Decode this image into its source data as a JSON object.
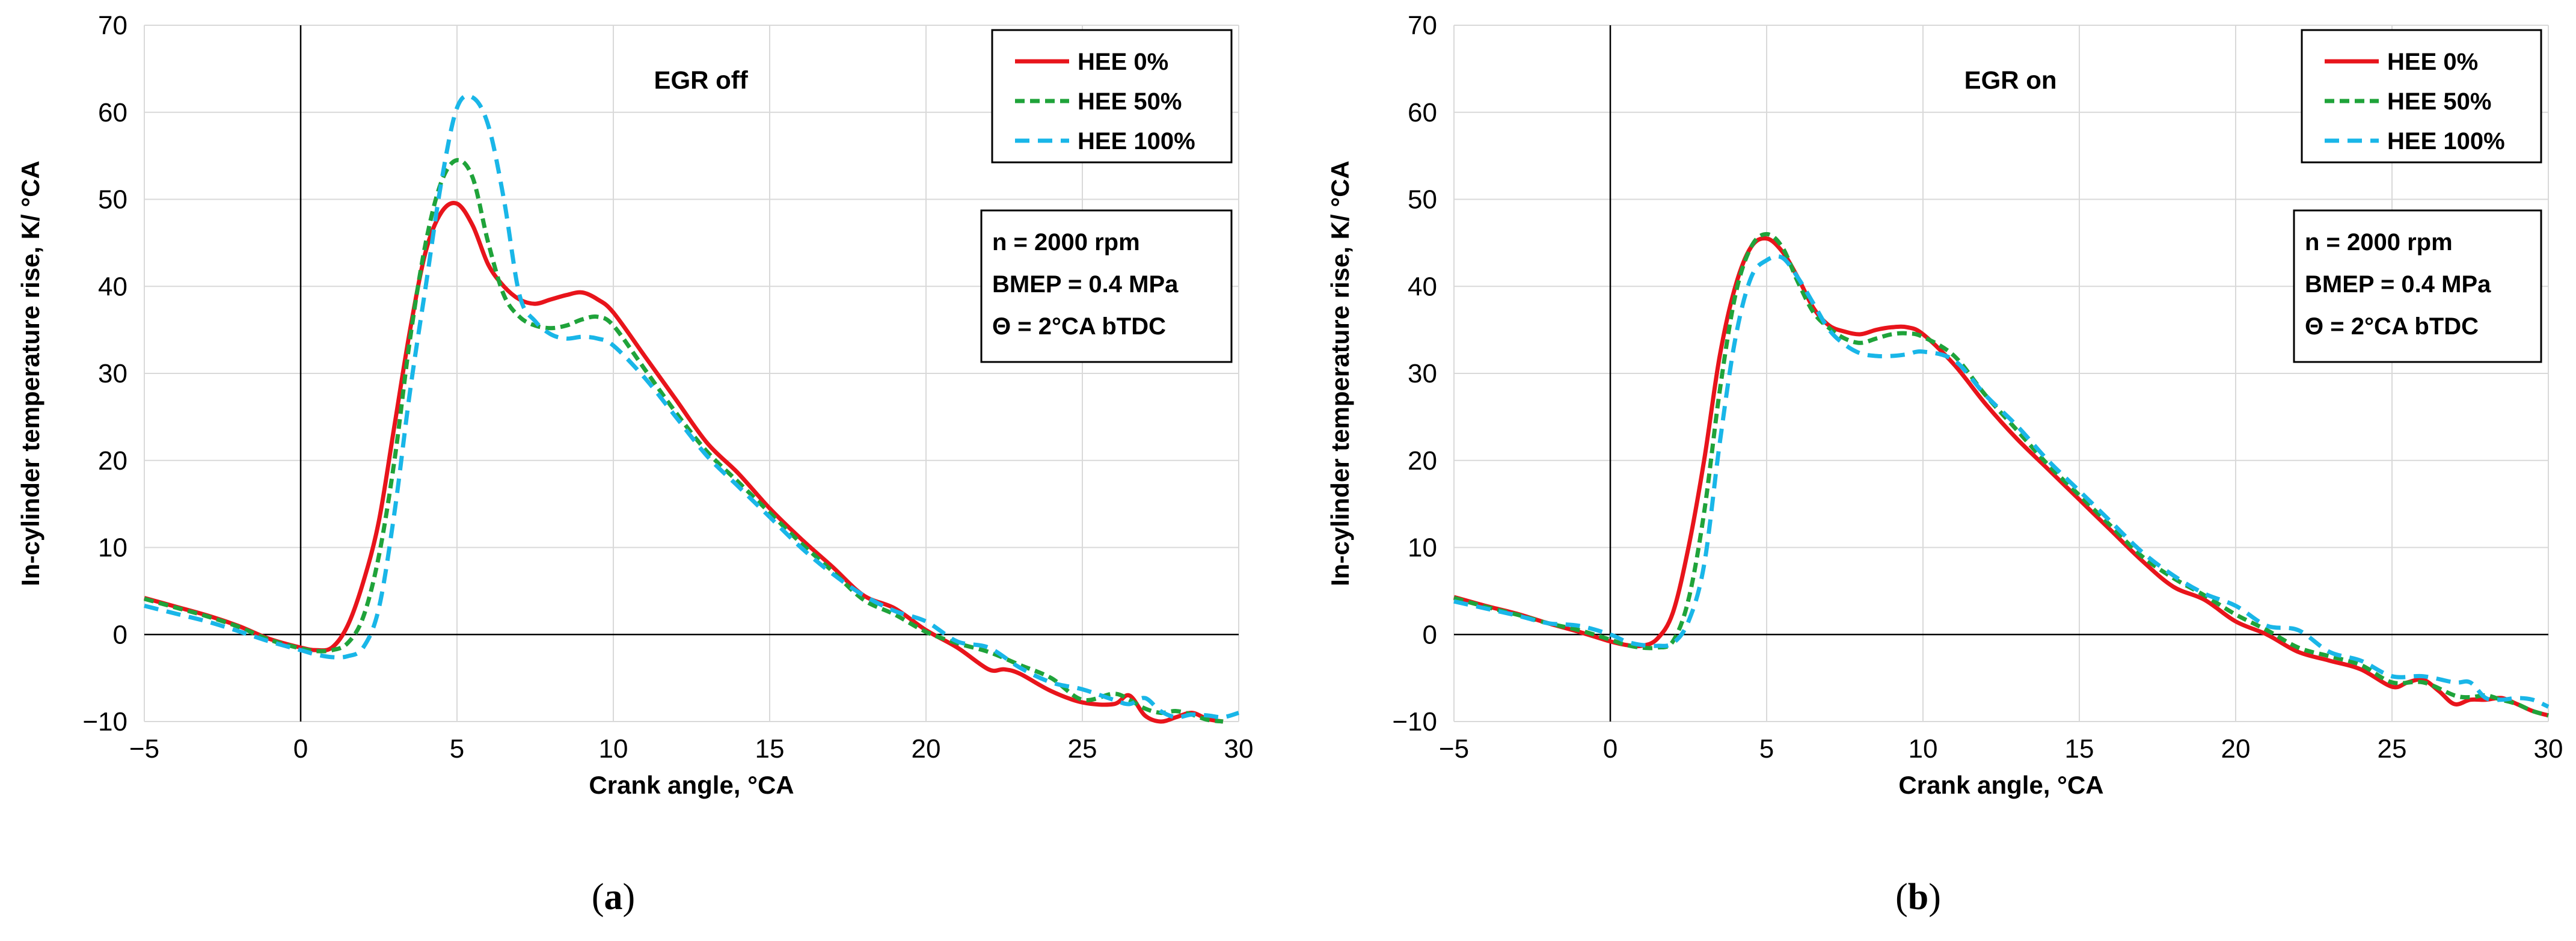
{
  "figure": {
    "panel_a_label": "a",
    "panel_b_label": "b"
  },
  "colors": {
    "hee0": "#E8141B",
    "hee50": "#1FA33A",
    "hee100": "#19B6E8",
    "axis": "#000000",
    "grid": "#D9D9D9"
  },
  "chart_data": [
    {
      "type": "line",
      "panel": "a",
      "title": "EGR off",
      "xlabel": "Crank angle, °CA",
      "ylabel": "In-cylinder temperature rise, K/ °CA",
      "xlim": [
        -5,
        30
      ],
      "ylim": [
        -10,
        70
      ],
      "xticks": [
        "−5",
        "0",
        "5",
        "10",
        "15",
        "20",
        "25",
        "30"
      ],
      "yticks": [
        "−10",
        "0",
        "10",
        "20",
        "30",
        "40",
        "50",
        "60",
        "70"
      ],
      "grid": true,
      "legend": [
        "HEE 0%",
        "HEE 50%",
        "HEE 100%"
      ],
      "legend_position": "top-right",
      "conditions": [
        "n = 2000 rpm",
        "BMEP = 0.4 MPa",
        "Θ = 2°CA bTDC"
      ],
      "series": [
        {
          "name": "HEE 0%",
          "style": "solid",
          "x": [
            -5,
            -4,
            -3,
            -2,
            -1,
            0,
            0.5,
            1,
            1.5,
            2,
            2.5,
            3,
            3.5,
            4,
            4.5,
            5,
            5.5,
            6,
            6.5,
            7,
            7.5,
            8,
            8.5,
            9,
            9.5,
            10,
            11,
            12,
            13,
            14,
            15,
            16,
            17,
            18,
            19,
            20,
            21,
            22,
            22.5,
            23,
            24,
            25,
            26,
            26.5,
            27,
            27.5,
            28,
            28.5,
            29,
            29.5
          ],
          "y": [
            4.2,
            3.2,
            2.2,
            1,
            -0.5,
            -1.5,
            -1.8,
            -1.5,
            1,
            6,
            13,
            24,
            35,
            44,
            48.5,
            49.5,
            47,
            42.5,
            40,
            38.5,
            38,
            38.5,
            39,
            39.3,
            38.5,
            37,
            32,
            27,
            22,
            18.5,
            14.5,
            11,
            7.8,
            4.5,
            3,
            0.5,
            -1.5,
            -4,
            -4,
            -4.5,
            -6.5,
            -7.8,
            -8,
            -7,
            -9.3,
            -10,
            -9.5,
            -9,
            -9.7,
            -10
          ]
        },
        {
          "name": "HEE 50%",
          "style": "dashed",
          "x": [
            -5,
            -4,
            -3,
            -2,
            -1,
            0,
            0.5,
            1,
            1.5,
            2,
            2.5,
            3,
            3.5,
            4,
            4.5,
            5,
            5.5,
            6,
            6.5,
            7,
            7.5,
            8,
            8.5,
            9,
            9.5,
            10,
            11,
            12,
            13,
            14,
            15,
            16,
            17,
            18,
            19,
            20,
            21,
            22,
            23,
            24,
            25,
            26,
            26.5,
            27,
            27.5,
            28,
            28.5,
            29,
            29.5
          ],
          "y": [
            4.1,
            3.1,
            2.1,
            0.9,
            -0.6,
            -1.6,
            -1.9,
            -1.8,
            -1,
            2,
            9,
            20,
            34,
            45,
            52,
            54.5,
            52.5,
            45,
            39,
            36.5,
            35.5,
            35.2,
            35.5,
            36.2,
            36.5,
            35.5,
            30.5,
            25.5,
            21,
            17.5,
            14,
            10.5,
            7.3,
            4,
            2.3,
            0.3,
            -1,
            -2,
            -3.5,
            -5,
            -7.5,
            -6.8,
            -7.5,
            -8.5,
            -9,
            -8.8,
            -9.2,
            -9.8,
            -10
          ]
        },
        {
          "name": "HEE 100%",
          "style": "dashed",
          "x": [
            -5,
            -4,
            -3,
            -2,
            -1,
            0,
            0.5,
            1,
            1.5,
            2,
            2.5,
            3,
            3.5,
            4,
            4.5,
            5,
            5.5,
            6,
            6.5,
            7,
            7.5,
            8,
            8.5,
            9,
            9.5,
            10,
            11,
            12,
            13,
            14,
            15,
            16,
            17,
            18,
            19,
            20,
            21,
            22,
            23,
            24,
            25,
            26,
            26.5,
            27,
            27.5,
            28,
            28.5,
            29,
            29.5,
            30
          ],
          "y": [
            3.3,
            2.4,
            1.5,
            0.4,
            -0.8,
            -1.8,
            -2.3,
            -2.6,
            -2.5,
            -1.5,
            3,
            14,
            28,
            40,
            52,
            60.5,
            61.7,
            58.5,
            50,
            39,
            36,
            34.5,
            34,
            34.2,
            34,
            33.2,
            29.5,
            25,
            20.5,
            17,
            13.5,
            10,
            7,
            4.5,
            2.7,
            1.5,
            -0.8,
            -1.5,
            -3.8,
            -5.5,
            -6.3,
            -7.5,
            -8,
            -7.3,
            -8.8,
            -9.5,
            -9.2,
            -9.3,
            -9.5,
            -9
          ]
        }
      ]
    },
    {
      "type": "line",
      "panel": "b",
      "title": "EGR on",
      "xlabel": "Crank angle, °CA",
      "ylabel": "In-cylinder temperature rise, K/ °CA",
      "xlim": [
        -5,
        30
      ],
      "ylim": [
        -10,
        70
      ],
      "xticks": [
        "−5",
        "0",
        "5",
        "10",
        "15",
        "20",
        "25",
        "30"
      ],
      "yticks": [
        "−10",
        "0",
        "10",
        "20",
        "30",
        "40",
        "50",
        "60",
        "70"
      ],
      "grid": true,
      "legend": [
        "HEE 0%",
        "HEE 50%",
        "HEE 100%"
      ],
      "legend_position": "top-right",
      "conditions": [
        "n = 2000 rpm",
        "BMEP = 0.4 MPa",
        "Θ = 2°CA bTDC"
      ],
      "series": [
        {
          "name": "HEE 0%",
          "style": "solid",
          "x": [
            -5,
            -4,
            -3,
            -2,
            -1,
            0,
            0.5,
            1,
            1.5,
            2,
            2.5,
            3,
            3.5,
            4,
            4.5,
            5,
            5.5,
            6,
            6.5,
            7,
            7.5,
            8,
            8.5,
            9,
            9.5,
            10,
            11,
            12,
            13,
            14,
            15,
            16,
            17,
            18,
            19,
            20,
            21,
            22,
            23,
            24,
            25,
            25.5,
            26,
            26.5,
            27,
            27.5,
            28,
            28.5,
            29,
            29.5,
            30
          ],
          "y": [
            4.3,
            3.3,
            2.4,
            1.3,
            0.3,
            -0.8,
            -1.2,
            -1.3,
            -0.5,
            2.5,
            10,
            20,
            32,
            40,
            44.5,
            45.5,
            44,
            41,
            37.5,
            35.5,
            34.8,
            34.5,
            35,
            35.3,
            35.3,
            34.5,
            31,
            26.5,
            22.5,
            19,
            15.5,
            12,
            8.5,
            5.5,
            4,
            1.5,
            0,
            -2,
            -3,
            -4,
            -6,
            -5.5,
            -5.2,
            -6.5,
            -8,
            -7.5,
            -7.5,
            -7.3,
            -8,
            -8.8,
            -9.3
          ]
        },
        {
          "name": "HEE 50%",
          "style": "dashed",
          "x": [
            -5,
            -4,
            -3,
            -2,
            -1,
            0,
            0.5,
            1,
            1.5,
            2,
            2.5,
            3,
            3.5,
            4,
            4.5,
            5,
            5.5,
            6,
            6.5,
            7,
            7.5,
            8,
            8.5,
            9,
            9.5,
            10,
            11,
            12,
            13,
            14,
            15,
            16,
            17,
            18,
            19,
            20,
            21,
            22,
            23,
            24,
            25,
            26,
            27,
            27.5,
            28,
            28.5,
            29,
            29.5,
            30
          ],
          "y": [
            4.2,
            3.2,
            2.3,
            1.3,
            0.5,
            -0.6,
            -1.2,
            -1.5,
            -1.5,
            -0.8,
            4,
            14,
            28,
            39,
            44.5,
            46,
            44.5,
            40.5,
            37,
            35.2,
            34,
            33.5,
            34,
            34.5,
            34.6,
            34.2,
            32,
            27.5,
            23.5,
            19.5,
            16,
            12.5,
            9,
            6.5,
            4.5,
            2.3,
            0.5,
            -1.5,
            -2.5,
            -3.5,
            -5.5,
            -5.5,
            -7,
            -7.2,
            -7,
            -7.5,
            -8,
            -8.8,
            -9.3
          ]
        },
        {
          "name": "HEE 100%",
          "style": "dashed",
          "x": [
            -5,
            -4,
            -3,
            -2,
            -1,
            0,
            0.5,
            1,
            1.5,
            2,
            2.5,
            3,
            3.5,
            4,
            4.5,
            5,
            5.5,
            6,
            6.5,
            7,
            7.5,
            8,
            8.5,
            9,
            9.5,
            10,
            11,
            12,
            13,
            14,
            15,
            16,
            17,
            18,
            19,
            20,
            21,
            22,
            23,
            24,
            25,
            26,
            27,
            27.5,
            28,
            28.5,
            29,
            29.5,
            30
          ],
          "y": [
            3.8,
            3,
            2.2,
            1.3,
            1,
            0,
            -0.8,
            -1.2,
            -1.3,
            -1,
            1.5,
            8,
            22,
            34,
            41,
            43,
            43.3,
            41,
            38,
            35,
            33.3,
            32.3,
            32,
            32,
            32.2,
            32.5,
            31.5,
            27.5,
            24,
            20,
            16.5,
            13,
            9.5,
            6.8,
            4.7,
            3.3,
            1,
            0.5,
            -2,
            -3,
            -4.8,
            -4.8,
            -5.5,
            -5.5,
            -7.3,
            -7.5,
            -7.3,
            -7.5,
            -8.3
          ]
        }
      ]
    }
  ]
}
